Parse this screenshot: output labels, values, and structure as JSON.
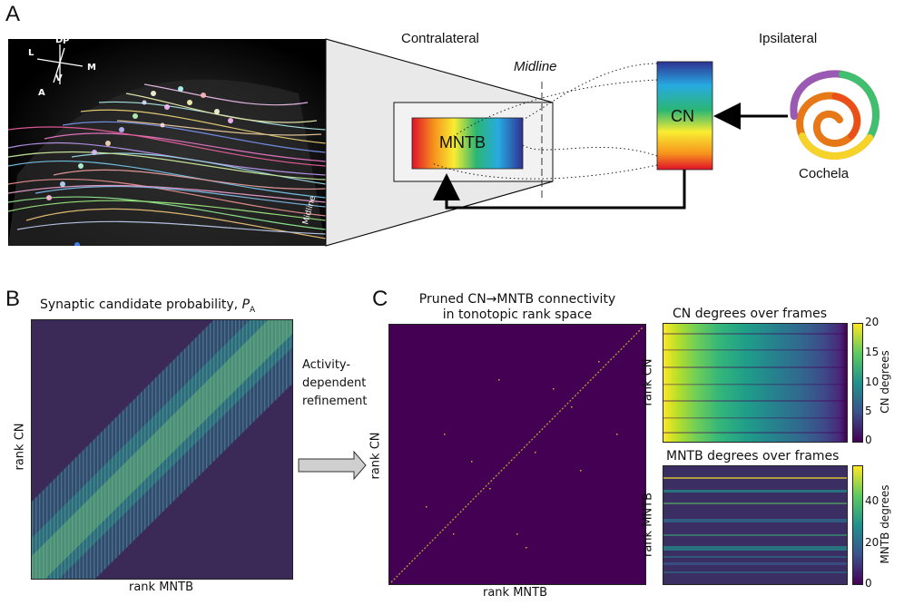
{
  "panels": {
    "a": {
      "letter": "A",
      "contralateral": "Contralateral",
      "ipsilateral": "Ipsilateral",
      "midline": "Midline",
      "mntb": "MNTB",
      "cn": "CN",
      "cochlea": "Cochela",
      "axes": {
        "d": "D",
        "p": "P",
        "l": "L",
        "m": "M",
        "v": "V",
        "a": "A"
      },
      "photo_midline": "Midline"
    },
    "b": {
      "letter": "B",
      "title": "Synaptic candidate probability, ",
      "title_sym": "P",
      "title_sub": "A",
      "xlabel": "rank MNTB",
      "ylabel": "rank CN",
      "arrow_label": [
        "Activity-",
        "dependent",
        "refinement"
      ]
    },
    "c": {
      "letter": "C",
      "title_line1": "Pruned CN→MNTB connectivity",
      "title_line2": "in tonotopic rank space",
      "xlabel": "rank MNTB",
      "ylabel": "rank CN",
      "cn_plot": {
        "title": "CN degrees over frames",
        "ylabel": "rank CN",
        "colorbar_label": "CN degrees",
        "colorbar_ticks": [
          "20",
          "15",
          "10",
          "5",
          "0"
        ]
      },
      "mntb_plot": {
        "title": "MNTB degrees over frames",
        "ylabel": "rank MNTB",
        "colorbar_label": "MNTB degrees",
        "colorbar_ticks": [
          "40",
          "20",
          "0"
        ]
      }
    }
  },
  "colors": {
    "viridis_dark": "#440154",
    "viridis_mid": "#21918c",
    "viridis_light": "#fde725"
  }
}
